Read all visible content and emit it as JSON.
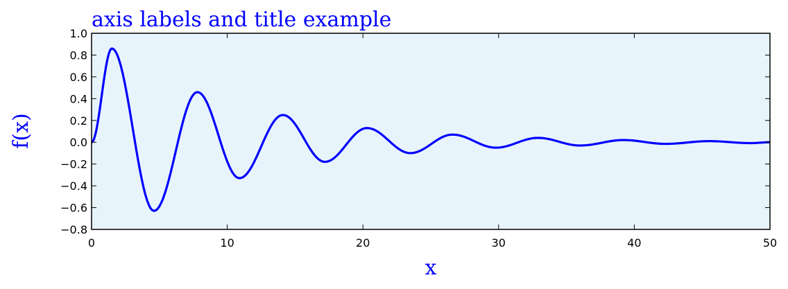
{
  "chart_data": {
    "type": "line",
    "title": "axis labels and title example",
    "xlabel": "x",
    "ylabel": "f(x)",
    "xlim": [
      0,
      50
    ],
    "ylim": [
      -0.8,
      1.0
    ],
    "xticks": [
      "0",
      "10",
      "20",
      "30",
      "40",
      "50"
    ],
    "yticks": [
      "−0.8",
      "−0.6",
      "−0.4",
      "−0.2",
      "0.0",
      "0.2",
      "0.4",
      "0.6",
      "0.8",
      "1.0"
    ],
    "grid": false,
    "series": [
      {
        "x": [
          0,
          1.5,
          4.6,
          7.8,
          10.9,
          14.1,
          17.2,
          20.3,
          23.5,
          26.6,
          29.8,
          32.9,
          36.0,
          39.2,
          42.3,
          45.5,
          48.6,
          50
        ],
        "y": [
          0.0,
          0.86,
          -0.63,
          0.46,
          -0.33,
          0.25,
          -0.18,
          0.13,
          -0.1,
          0.07,
          -0.05,
          0.04,
          -0.03,
          0.02,
          -0.015,
          0.01,
          -0.008,
          0.0
        ]
      }
    ]
  },
  "colors": {
    "line": "#0000ff",
    "text_accent": "#0000ff",
    "plot_background": "#e8f4fc",
    "axes": "#000000"
  }
}
